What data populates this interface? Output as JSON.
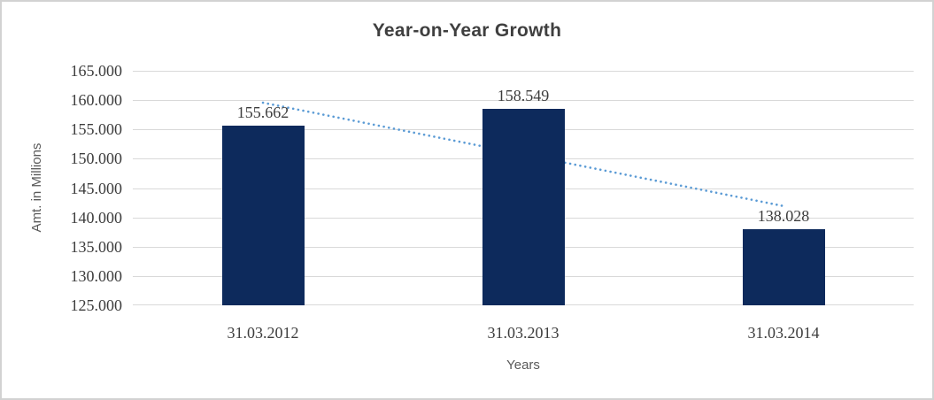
{
  "chart_data": {
    "type": "bar",
    "title": "Year-on-Year Growth",
    "xlabel": "Years",
    "ylabel": "Amt. in Millions",
    "categories": [
      "31.03.2012",
      "31.03.2013",
      "31.03.2014"
    ],
    "values": [
      155.662,
      158.549,
      138.028
    ],
    "data_labels": [
      "155.662",
      "158.549",
      "138.028"
    ],
    "ylim": [
      125,
      165
    ],
    "ytick_step": 5,
    "ytick_labels": [
      "125.000",
      "130.000",
      "135.000",
      "140.000",
      "145.000",
      "150.000",
      "155.000",
      "160.000",
      "165.000"
    ],
    "grid": true,
    "legend": "none",
    "bar_color": "#0d2a5c",
    "gridline_color": "#d9d9d9",
    "trendline": {
      "type": "linear",
      "style": "dotted",
      "color": "#5b9bd5",
      "start_value": 159.56,
      "end_value": 141.93
    }
  }
}
